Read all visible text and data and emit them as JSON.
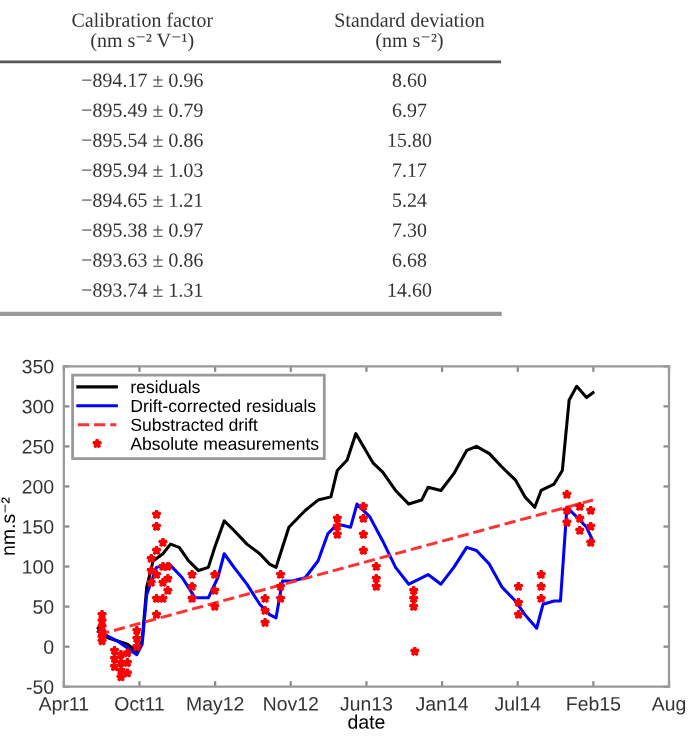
{
  "chart_data": [
    {
      "type": "other",
      "annotations": [
        "Calibration factor\n(nm s⁻² V⁻¹)",
        "Standard deviation\n(nm s⁻²)",
        "−894.17 ± 0.96",
        "8.60",
        "−895.49 ± 0.79",
        "6.97",
        "−895.54 ± 0.86",
        "15.80",
        "−895.94 ± 1.03",
        "7.17",
        "−894.65 ± 1.21",
        "5.24",
        "−895.38 ± 0.97",
        "7.30",
        "−893.63 ± 0.86",
        "6.68",
        "−893.74 ± 1.31",
        "14.60"
      ]
    },
    {
      "type": "line",
      "xlabel": "date",
      "ylabel": "nm.s⁻²",
      "legend": "top left",
      "grid": false,
      "xlim": [
        "2011-04-10",
        "2015-08-27"
      ],
      "xticks": [
        {
          "value": "2011-04-10",
          "label": "Apr11"
        },
        {
          "value": "2011-10-27",
          "label": "Oct11"
        },
        {
          "value": "2012-05-14",
          "label": "May12"
        },
        {
          "value": "2012-11-30",
          "label": "Nov12"
        },
        {
          "value": "2013-06-18",
          "label": "Jun13"
        },
        {
          "value": "2014-01-04",
          "label": "Jan14"
        },
        {
          "value": "2014-07-23",
          "label": "Jul14"
        },
        {
          "value": "2015-02-08",
          "label": "Feb15"
        },
        {
          "value": "2015-08-27",
          "label": "Aug"
        }
      ],
      "ylim": [
        -50,
        350
      ],
      "yticks": [
        -50,
        0,
        50,
        100,
        150,
        200,
        250,
        300,
        350
      ],
      "series": [
        {
          "name": "residuals",
          "type": "line",
          "color": "#000000",
          "line_style": "solid",
          "marker": "none",
          "x": [
            "2011-07-10",
            "2011-08-04",
            "2011-08-30",
            "2011-09-25",
            "2011-10-20",
            "2011-11-03",
            "2011-11-15",
            "2011-12-02",
            "2011-12-28",
            "2012-01-17",
            "2012-02-09",
            "2012-03-05",
            "2012-03-31",
            "2012-04-26",
            "2012-05-13",
            "2012-06-07",
            "2012-07-03",
            "2012-08-06",
            "2012-09-09",
            "2012-10-05",
            "2012-10-22",
            "2012-11-08",
            "2012-11-25",
            "2013-01-07",
            "2013-02-10",
            "2013-03-16",
            "2013-04-02",
            "2013-04-28",
            "2013-05-21",
            "2013-06-10",
            "2013-07-06",
            "2013-07-31",
            "2013-09-03",
            "2013-10-08",
            "2013-11-11",
            "2013-11-28",
            "2014-01-01",
            "2014-02-04",
            "2014-03-10",
            "2014-04-05",
            "2014-05-09",
            "2014-06-12",
            "2014-07-17",
            "2014-08-11",
            "2014-09-06",
            "2014-09-23",
            "2014-10-27",
            "2014-11-18",
            "2014-12-06",
            "2014-12-26",
            "2015-01-21",
            "2015-02-07"
          ],
          "values": [
            23,
            11,
            7,
            3,
            -6,
            7,
            74,
            107,
            116,
            128,
            124,
            107,
            95,
            99,
            124,
            157,
            145,
            128,
            116,
            103,
            99,
            124,
            149,
            170,
            183,
            187,
            220,
            233,
            266,
            250,
            229,
            218,
            195,
            178,
            183,
            199,
            195,
            216,
            245,
            250,
            241,
            224,
            208,
            187,
            174,
            195,
            203,
            220,
            308,
            325,
            311,
            317
          ]
        },
        {
          "name": "Drift-corrected residuals",
          "type": "line",
          "color": "#0000ff",
          "line_style": "solid",
          "marker": "none",
          "x": [
            "2011-07-10",
            "2011-08-30",
            "2011-10-20",
            "2011-11-03",
            "2011-11-15",
            "2011-12-11",
            "2012-01-14",
            "2012-02-17",
            "2012-03-22",
            "2012-04-26",
            "2012-05-21",
            "2012-06-07",
            "2012-07-03",
            "2012-08-06",
            "2012-09-09",
            "2012-10-05",
            "2012-10-22",
            "2012-11-08",
            "2012-12-04",
            "2013-01-07",
            "2013-02-10",
            "2013-03-08",
            "2013-04-02",
            "2013-05-07",
            "2013-05-24",
            "2013-06-27",
            "2013-07-31",
            "2013-09-03",
            "2013-10-08",
            "2013-11-11",
            "2013-11-28",
            "2014-01-01",
            "2014-02-04",
            "2014-03-10",
            "2014-04-05",
            "2014-05-09",
            "2014-06-12",
            "2014-07-17",
            "2014-08-11",
            "2014-09-11",
            "2014-09-28",
            "2014-10-27",
            "2014-11-13",
            "2014-11-30",
            "2014-12-26",
            "2015-01-21",
            "2015-02-07"
          ],
          "values": [
            19,
            7,
            -10,
            3,
            65,
            99,
            103,
            86,
            61,
            61,
            86,
            116,
            99,
            78,
            53,
            40,
            36,
            82,
            82,
            86,
            107,
            141,
            153,
            149,
            178,
            162,
            132,
            99,
            78,
            86,
            90,
            78,
            99,
            124,
            120,
            103,
            74,
            57,
            40,
            23,
            53,
            57,
            57,
            174,
            162,
            149,
            132
          ]
        },
        {
          "name": "Substracted drift",
          "type": "line",
          "color": "#ff3333",
          "line_style": "dashed",
          "marker": "none",
          "x": [
            "2011-07-10",
            "2015-02-07"
          ],
          "values": [
            15,
            183
          ]
        },
        {
          "name": "Absolute measurements",
          "type": "scatter",
          "color": "#ff0000",
          "marker": "star",
          "x": [
            "2011-07-20",
            "2011-07-20",
            "2011-07-20",
            "2011-07-20",
            "2011-07-20",
            "2011-07-20",
            "2011-08-22",
            "2011-08-22",
            "2011-08-22",
            "2011-09-08",
            "2011-09-08",
            "2011-09-08",
            "2011-09-08",
            "2011-09-25",
            "2011-09-25",
            "2011-09-25",
            "2011-10-20",
            "2011-10-20",
            "2011-10-20",
            "2011-11-27",
            "2011-11-27",
            "2011-11-27",
            "2011-12-11",
            "2011-12-11",
            "2011-12-11",
            "2011-12-11",
            "2011-12-11",
            "2011-12-11",
            "2011-12-28",
            "2011-12-28",
            "2011-12-28",
            "2011-12-28",
            "2012-01-10",
            "2012-01-10",
            "2012-01-10",
            "2012-03-14",
            "2012-03-14",
            "2012-03-14",
            "2012-05-13",
            "2012-05-13",
            "2012-05-13",
            "2012-09-23",
            "2012-09-23",
            "2012-09-23",
            "2012-11-03",
            "2012-11-03",
            "2012-11-03",
            "2013-04-02",
            "2013-04-02",
            "2013-04-02",
            "2013-06-10",
            "2013-06-10",
            "2013-06-10",
            "2013-06-10",
            "2013-07-14",
            "2013-07-14",
            "2013-07-14",
            "2013-10-21",
            "2013-10-21",
            "2013-10-21",
            "2013-10-24",
            "2014-07-25",
            "2014-07-25",
            "2014-07-25",
            "2014-09-23",
            "2014-09-23",
            "2014-09-23",
            "2014-11-30",
            "2014-11-30",
            "2014-11-30",
            "2015-01-03",
            "2015-01-03",
            "2015-01-03",
            "2015-02-01",
            "2015-02-01",
            "2015-02-01"
          ],
          "values": [
            40,
            32,
            25,
            18,
            12,
            7,
            -5,
            -15,
            -25,
            -10,
            -20,
            -30,
            -38,
            -8,
            -20,
            -33,
            0,
            10,
            20,
            80,
            95,
            110,
            40,
            60,
            90,
            120,
            150,
            165,
            60,
            80,
            100,
            130,
            70,
            85,
            100,
            60,
            75,
            90,
            50,
            70,
            90,
            30,
            45,
            60,
            60,
            75,
            90,
            140,
            150,
            160,
            120,
            140,
            160,
            175,
            75,
            85,
            100,
            50,
            60,
            70,
            -6,
            40,
            55,
            75,
            60,
            75,
            90,
            155,
            170,
            190,
            145,
            160,
            175,
            130,
            150,
            170
          ]
        }
      ]
    }
  ]
}
